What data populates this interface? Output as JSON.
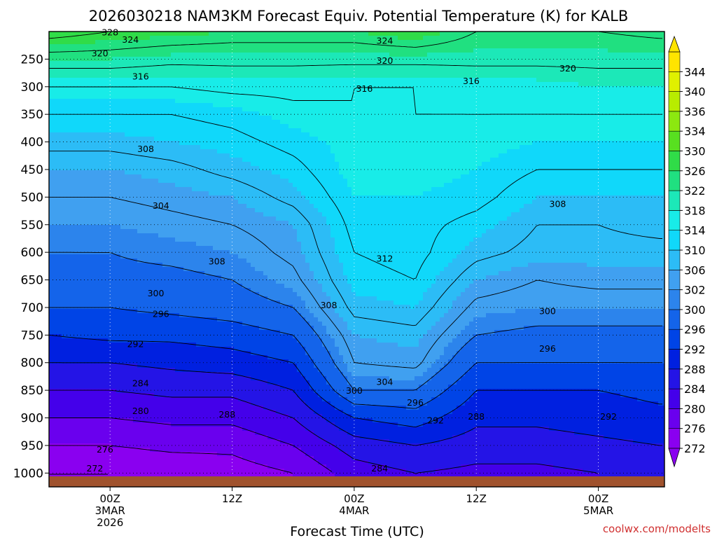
{
  "chart_data": {
    "type": "heatmap",
    "title": "2026030218 NAM3KM Forecast Equiv. Potential Temperature (K) for KALB",
    "xlabel": "Forecast Time (UTC)",
    "ylabel": "",
    "watermark": "coolwx.com/modelts",
    "y_ticks": [
      {
        "label": "250",
        "value": 250
      },
      {
        "label": "300",
        "value": 300
      },
      {
        "label": "350",
        "value": 350
      },
      {
        "label": "400",
        "value": 400
      },
      {
        "label": "450",
        "value": 450
      },
      {
        "label": "500",
        "value": 500
      },
      {
        "label": "550",
        "value": 550
      },
      {
        "label": "600",
        "value": 600
      },
      {
        "label": "650",
        "value": 650
      },
      {
        "label": "700",
        "value": 700
      },
      {
        "label": "750",
        "value": 750
      },
      {
        "label": "800",
        "value": 800
      },
      {
        "label": "850",
        "value": 850
      },
      {
        "label": "900",
        "value": 900
      },
      {
        "label": "950",
        "value": 950
      },
      {
        "label": "1000",
        "value": 1000
      }
    ],
    "ylim": [
      200,
      1025
    ],
    "x_ticks": [
      {
        "hours": 22,
        "lines": [
          "00Z",
          "3MAR",
          "2026"
        ]
      },
      {
        "hours": 34,
        "lines": [
          "12Z"
        ]
      },
      {
        "hours": 46,
        "lines": [
          "00Z",
          "4MAR"
        ]
      },
      {
        "hours": 58,
        "lines": [
          "12Z"
        ]
      },
      {
        "hours": 70,
        "lines": [
          "00Z",
          "5MAR"
        ]
      }
    ],
    "xlim_hours": [
      16,
      76.5
    ],
    "colorbar": {
      "levels": [
        "272",
        "276",
        "280",
        "284",
        "288",
        "292",
        "296",
        "300",
        "302",
        "306",
        "310",
        "314",
        "318",
        "322",
        "326",
        "330",
        "334",
        "336",
        "340",
        "344"
      ],
      "colors": [
        "#8a00f0",
        "#6a00ee",
        "#4400ea",
        "#2414e6",
        "#0020e0",
        "#0044e6",
        "#1464ea",
        "#2c84ec",
        "#40a0f0",
        "#2cbcf6",
        "#10d8fa",
        "#18ece8",
        "#1ce8b8",
        "#20e080",
        "#30dc48",
        "#58e020",
        "#8ce810",
        "#b8ec00",
        "#e0f000",
        "#ffe400"
      ]
    },
    "x_hours": [
      16,
      22,
      28,
      34,
      40,
      46,
      52,
      58,
      64,
      70,
      76
    ],
    "pressure_levels": [
      200,
      250,
      300,
      350,
      400,
      450,
      500,
      550,
      600,
      650,
      700,
      750,
      800,
      850,
      900,
      950,
      1000
    ],
    "values_K": [
      [
        330,
        328,
        327,
        326,
        326,
        326,
        328,
        324,
        324,
        324,
        325
      ],
      [
        322,
        322,
        321,
        321,
        321,
        321,
        321,
        321,
        321,
        321,
        321
      ],
      [
        316,
        316,
        316,
        317,
        317,
        316,
        316,
        317,
        317,
        318,
        318
      ],
      [
        312,
        312,
        312,
        313,
        315,
        316,
        316,
        316,
        316,
        316,
        316
      ],
      [
        309,
        309,
        310,
        311,
        313,
        315,
        315,
        315,
        314,
        314,
        314
      ],
      [
        306,
        306,
        307,
        309,
        311,
        315,
        315,
        314,
        312,
        312,
        312
      ],
      [
        304,
        304,
        305,
        306,
        309,
        314,
        314,
        313,
        310,
        310,
        310
      ],
      [
        302,
        302,
        303,
        304,
        306,
        313,
        313,
        311,
        308,
        308,
        309
      ],
      [
        300,
        300,
        301,
        302,
        305,
        312,
        313,
        309,
        307,
        307,
        307
      ],
      [
        298,
        299,
        299,
        300,
        303,
        311,
        312,
        306,
        304,
        305,
        305
      ],
      [
        296,
        296,
        297,
        298,
        300,
        309,
        310,
        303,
        302,
        302,
        302
      ],
      [
        292,
        293,
        293,
        294,
        296,
        306,
        307,
        300,
        299,
        299,
        299
      ],
      [
        288,
        288,
        289,
        290,
        292,
        304,
        305,
        296,
        296,
        296,
        296
      ],
      [
        284,
        284,
        285,
        285,
        288,
        300,
        300,
        292,
        292,
        292,
        293
      ],
      [
        280,
        280,
        281,
        281,
        284,
        292,
        294,
        289,
        289,
        290,
        291
      ],
      [
        276,
        276,
        277,
        277,
        280,
        286,
        288,
        286,
        286,
        287,
        288
      ],
      [
        272,
        272,
        273,
        274,
        276,
        282,
        284,
        283,
        283,
        284,
        285
      ]
    ],
    "contour_labels": [
      {
        "text": "328",
        "hours": 22.0,
        "p": 202
      },
      {
        "text": "324",
        "hours": 24.0,
        "p": 215
      },
      {
        "text": "324",
        "hours": 49.0,
        "p": 217
      },
      {
        "text": "320",
        "hours": 21.0,
        "p": 240
      },
      {
        "text": "320",
        "hours": 49.0,
        "p": 253
      },
      {
        "text": "320",
        "hours": 67.0,
        "p": 267
      },
      {
        "text": "316",
        "hours": 25.0,
        "p": 282
      },
      {
        "text": "316",
        "hours": 57.5,
        "p": 290
      },
      {
        "text": "316",
        "hours": 47.0,
        "p": 304
      },
      {
        "text": "308",
        "hours": 25.5,
        "p": 413
      },
      {
        "text": "308",
        "hours": 66.0,
        "p": 513
      },
      {
        "text": "304",
        "hours": 27.0,
        "p": 516
      },
      {
        "text": "312",
        "hours": 49.0,
        "p": 612
      },
      {
        "text": "308",
        "hours": 32.5,
        "p": 617
      },
      {
        "text": "300",
        "hours": 26.5,
        "p": 675
      },
      {
        "text": "308",
        "hours": 43.5,
        "p": 696
      },
      {
        "text": "296",
        "hours": 27.0,
        "p": 712
      },
      {
        "text": "300",
        "hours": 65.0,
        "p": 707
      },
      {
        "text": "292",
        "hours": 24.5,
        "p": 767
      },
      {
        "text": "296",
        "hours": 65.0,
        "p": 775
      },
      {
        "text": "284",
        "hours": 25.0,
        "p": 838
      },
      {
        "text": "304",
        "hours": 49.0,
        "p": 835
      },
      {
        "text": "300",
        "hours": 46.0,
        "p": 851
      },
      {
        "text": "296",
        "hours": 52.0,
        "p": 873
      },
      {
        "text": "280",
        "hours": 25.0,
        "p": 888
      },
      {
        "text": "288",
        "hours": 33.5,
        "p": 894
      },
      {
        "text": "288",
        "hours": 58.0,
        "p": 898
      },
      {
        "text": "292",
        "hours": 54.0,
        "p": 905
      },
      {
        "text": "292",
        "hours": 71.0,
        "p": 898
      },
      {
        "text": "276",
        "hours": 21.5,
        "p": 958
      },
      {
        "text": "272",
        "hours": 20.5,
        "p": 992
      },
      {
        "text": "284",
        "hours": 48.5,
        "p": 992
      }
    ]
  }
}
